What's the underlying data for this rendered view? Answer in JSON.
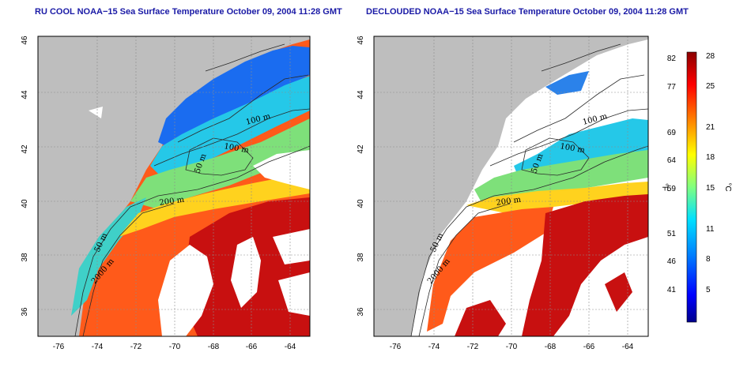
{
  "panels": [
    {
      "title": "RU COOL NOAA−15 Sea Surface Temperature October 09, 2004 11:28 GMT",
      "mode": "full"
    },
    {
      "title": "DECLOUDED NOAA−15 Sea Surface Temperature October 09, 2004 11:28 GMT",
      "mode": "declouded"
    }
  ],
  "lat_ticks": [
    "36",
    "38",
    "40",
    "42",
    "44",
    "46"
  ],
  "lon_ticks": [
    "-76",
    "-74",
    "-72",
    "-70",
    "-68",
    "-66",
    "-64"
  ],
  "contour_labels": [
    "100 m",
    "100 m",
    "50 m",
    "200 m",
    "50 m",
    "2000 m"
  ],
  "colorbar": {
    "f_label": "°F",
    "c_label": "°C",
    "f_ticks": [
      "82",
      "77",
      "69",
      "64",
      "59",
      "51",
      "46",
      "41"
    ],
    "c_ticks": [
      "28",
      "25",
      "21",
      "18",
      "15",
      "11",
      "8",
      "5"
    ],
    "colors": [
      "#00008b",
      "#0000ff",
      "#0080ff",
      "#00ffff",
      "#80ff80",
      "#ffff00",
      "#ff8000",
      "#ff0000",
      "#8b0000"
    ]
  },
  "colors": {
    "land": "#bebebe",
    "cloud": "#ffffff",
    "contour": "#2a2a2a",
    "grid": "#8c8c8c",
    "title": "#1a1aa6"
  }
}
